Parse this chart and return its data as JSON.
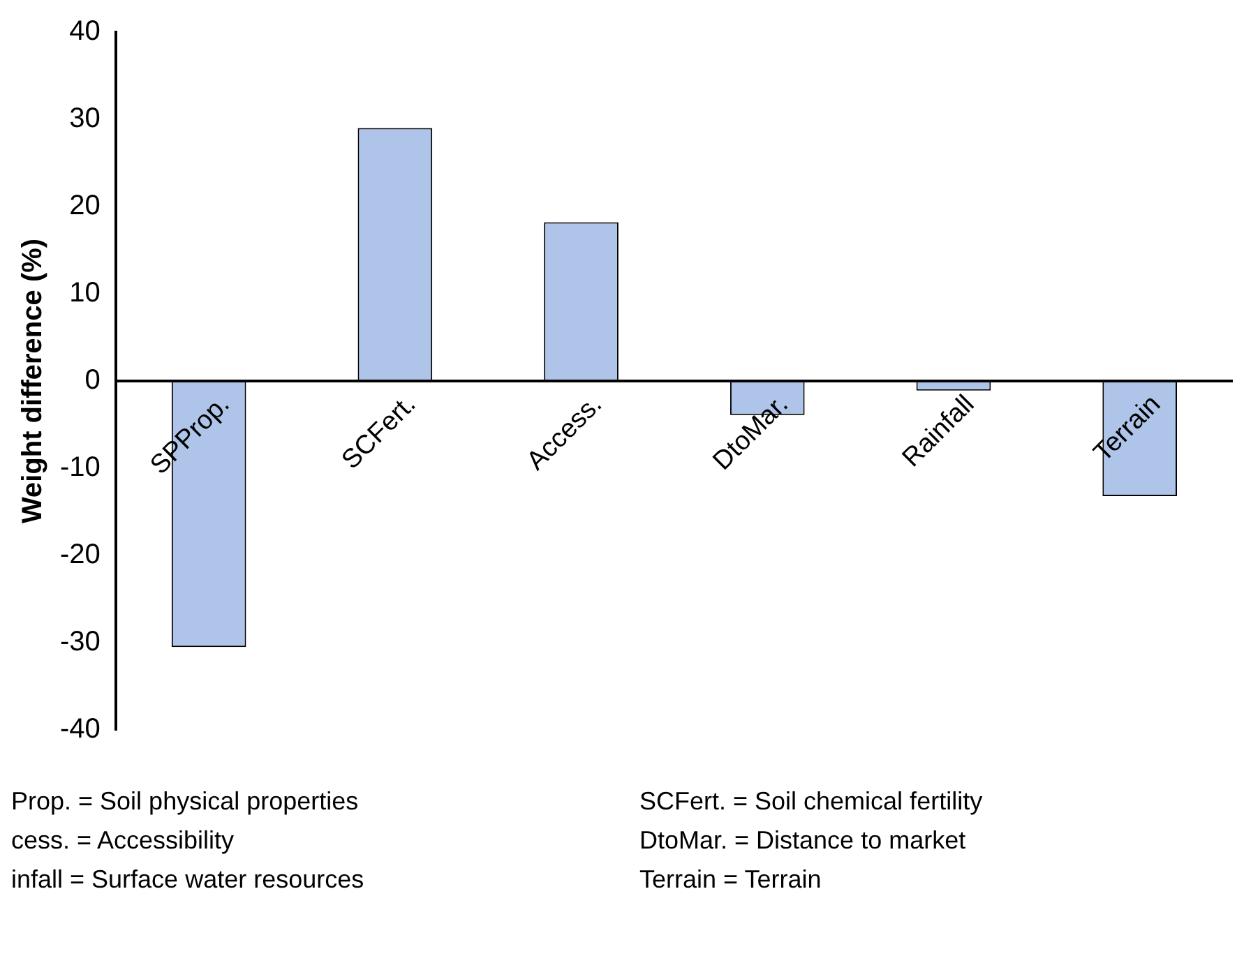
{
  "chart_data": {
    "type": "bar",
    "ylabel": "Weight difference (%)",
    "categories": [
      "SPProp.",
      "SCFert.",
      "Access.",
      "DtoMar.",
      "Rainfall",
      "Terrain"
    ],
    "values": [
      -30.5,
      29,
      18.2,
      -3.9,
      -1.1,
      -13.2
    ],
    "color": "#aec4e8",
    "ylim": [
      -40,
      40
    ],
    "yticks": [
      -40,
      -30,
      -20,
      -10,
      0,
      10,
      20,
      30,
      40
    ],
    "grid": false,
    "legend": false,
    "annotations": [
      "Prop. = Soil physical properties",
      "SCFert. = Soil chemical fertility",
      "cess. = Accessibility",
      "DtoMar. = Distance to market",
      "infall = Surface water resources",
      "Terrain = Terrain"
    ]
  }
}
